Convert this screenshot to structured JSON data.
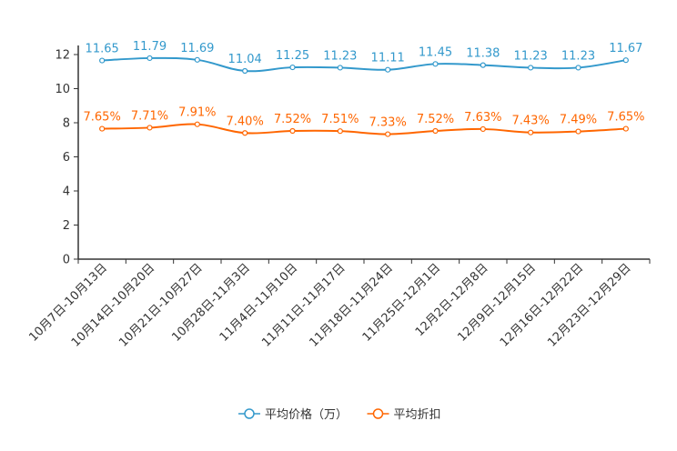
{
  "chart_data": {
    "type": "line",
    "title": "",
    "xlabel": "",
    "ylabel": "",
    "ylim": [
      0,
      12
    ],
    "yticks": [
      0,
      2,
      4,
      6,
      8,
      10,
      12
    ],
    "categories": [
      "10月7日-10月13日",
      "10月14日-10月20日",
      "10月21日-10月27日",
      "10月28日-11月3日",
      "11月4日-11月10日",
      "11月11日-11月17日",
      "11月18日-11月24日",
      "11月25日-12月1日",
      "12月2日-12月8日",
      "12月9日-12月15日",
      "12月16日-12月22日",
      "12月23日-12月29日"
    ],
    "series": [
      {
        "name": "平均价格（万）",
        "color": "#3399cc",
        "values": [
          11.65,
          11.79,
          11.69,
          11.04,
          11.25,
          11.23,
          11.11,
          11.45,
          11.38,
          11.23,
          11.23,
          11.67
        ],
        "labels": [
          "11.65",
          "11.79",
          "11.69",
          "11.04",
          "11.25",
          "11.23",
          "11.11",
          "11.45",
          "11.38",
          "11.23",
          "11.23",
          "11.67"
        ]
      },
      {
        "name": "平均折扣",
        "color": "#ff6600",
        "values": [
          7.65,
          7.71,
          7.91,
          7.4,
          7.52,
          7.51,
          7.33,
          7.52,
          7.63,
          7.43,
          7.49,
          7.65
        ],
        "labels": [
          "7.65%",
          "7.71%",
          "7.91%",
          "7.40%",
          "7.52%",
          "7.51%",
          "7.33%",
          "7.52%",
          "7.63%",
          "7.43%",
          "7.49%",
          "7.65%"
        ]
      }
    ],
    "legend": "bottom-center"
  }
}
